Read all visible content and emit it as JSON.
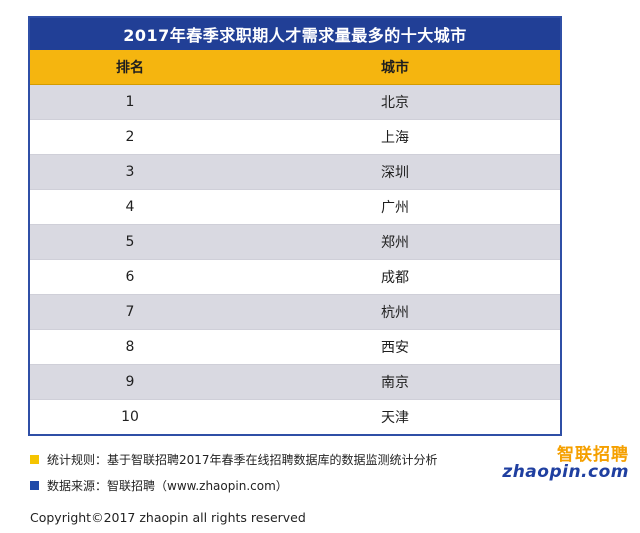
{
  "table": {
    "title": "2017年春季求职期人才需求量最多的十大城市",
    "headers": {
      "rank": "排名",
      "city": "城市"
    },
    "rows": [
      {
        "rank": "1",
        "city": "北京"
      },
      {
        "rank": "2",
        "city": "上海"
      },
      {
        "rank": "3",
        "city": "深圳"
      },
      {
        "rank": "4",
        "city": "广州"
      },
      {
        "rank": "5",
        "city": "郑州"
      },
      {
        "rank": "6",
        "city": "成都"
      },
      {
        "rank": "7",
        "city": "杭州"
      },
      {
        "rank": "8",
        "city": "西安"
      },
      {
        "rank": "9",
        "city": "南京"
      },
      {
        "rank": "10",
        "city": "天津"
      }
    ]
  },
  "notes": {
    "rule": "统计规则：基于智联招聘2017年春季在线招聘数据库的数据监测统计分析",
    "source": "数据来源：智联招聘（www.zhaopin.com）",
    "rule_color": "#f5c400",
    "source_color": "#1f4aa8"
  },
  "logo": {
    "cn": "智联招聘",
    "en": "zhaopin.com"
  },
  "copyright": "Copyright©2017 zhaopin all rights reserved",
  "colors": {
    "title_bg": "#213f96",
    "header_bg": "#f5b50f",
    "row_alt": "#d9d9e1"
  }
}
